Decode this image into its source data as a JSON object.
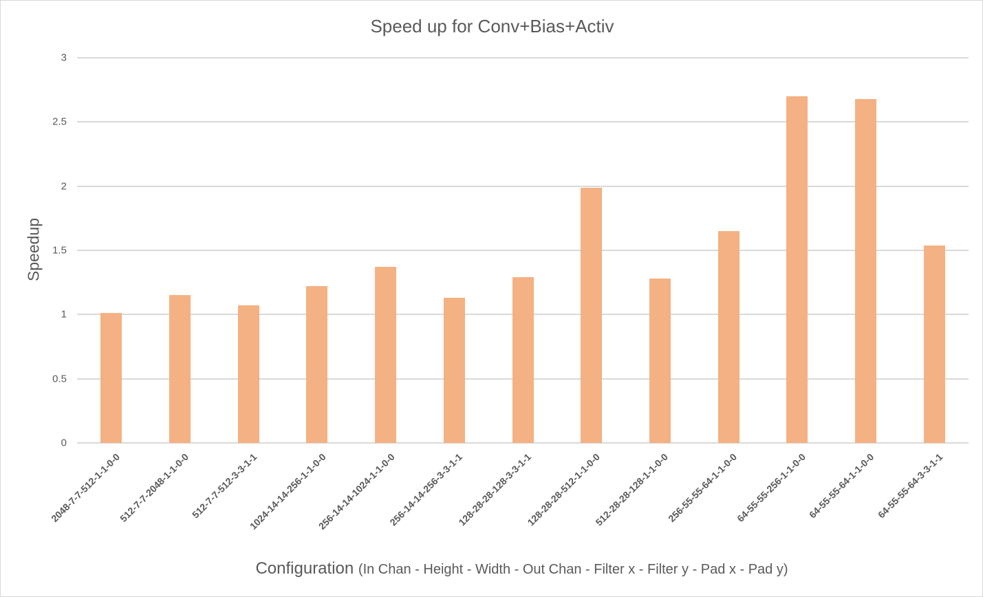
{
  "chart_data": {
    "type": "bar",
    "title": "Speed up for Conv+Bias+Activ",
    "xlabel": "Configuration",
    "xlabel_detail": "(In Chan - Height - Width - Out Chan - Filter x - Filter y - Pad x - Pad y)",
    "ylabel": "Speedup",
    "ylim": [
      0,
      3
    ],
    "yticks": [
      "0",
      "0.5",
      "1",
      "1.5",
      "2",
      "2.5",
      "3"
    ],
    "grid": true,
    "legend": null,
    "bar_color": "#f4b183",
    "categories": [
      "2048-7-7-512-1-1-0-0",
      "512-7-7-2048-1-1-0-0",
      "512-7-7-512-3-3-1-1",
      "1024-14-14-256-1-1-0-0",
      "256-14-14-1024-1-1-0-0",
      "256-14-14-256-3-3-1-1",
      "128-28-28-128-3-3-1-1",
      "128-28-28-512-1-1-0-0",
      "512-28-28-128-1-1-0-0",
      "256-55-55-64-1-1-0-0",
      "64-55-55-256-1-1-0-0",
      "64-55-55-64-1-1-0-0",
      "64-55-55-64-3-3-1-1"
    ],
    "values": [
      1.01,
      1.15,
      1.07,
      1.22,
      1.37,
      1.13,
      1.29,
      1.99,
      1.28,
      1.65,
      2.7,
      2.68,
      1.54
    ]
  }
}
